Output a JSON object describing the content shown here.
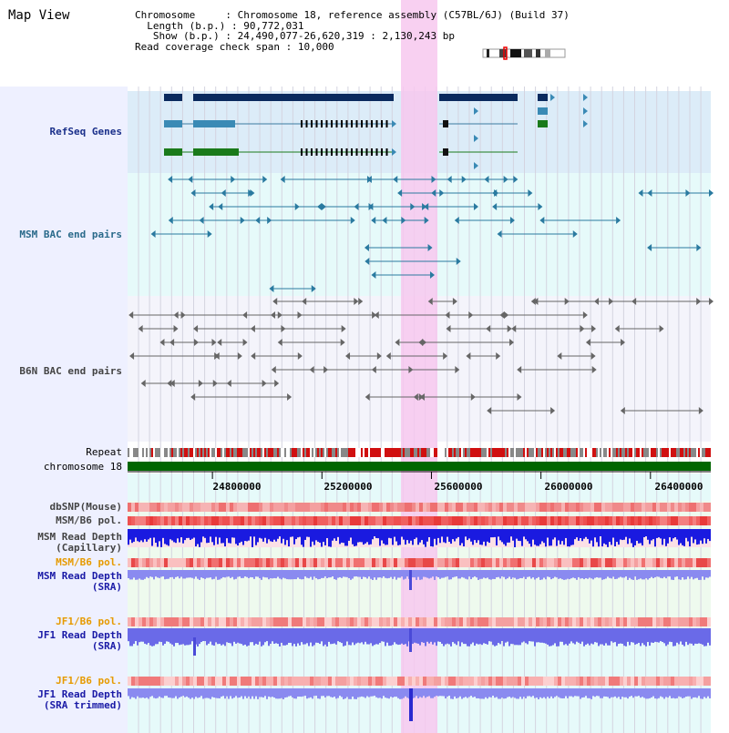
{
  "view_title": "Map View",
  "info": {
    "chromosome_label": "Chromosome",
    "chromosome_value": "Chromosome 18, reference assembly (C57BL/6J) (Build 37)",
    "length_label": "Length (b.p.)",
    "length_value": "90,772,031",
    "show_label": "Show (b.p.)",
    "show_value": "24,490,077-26,620,319 : 2,130,243 bp",
    "coverage_label": "Read coverage check span",
    "coverage_value": "10,000"
  },
  "tracks": {
    "refseq": {
      "label": "RefSeq Genes",
      "color": "#1a2f8a"
    },
    "msm_bac": {
      "label": "MSM BAC end pairs",
      "color": "#2a6a8a"
    },
    "b6n_bac": {
      "label": "B6N BAC end pairs",
      "color": "#444444"
    },
    "repeat": {
      "label": "Repeat"
    },
    "chromosome": {
      "label": "chromosome 18",
      "color": "#006600"
    },
    "dbsnp": {
      "label": "dbSNP(Mouse)",
      "color": "#444444"
    },
    "msm_b6_pol_1": {
      "label": "MSM/B6 pol.",
      "color": "#444444"
    },
    "msm_read_depth_cap": {
      "label_1": "MSM Read Depth",
      "label_2": "(Capillary)",
      "color": "#444444"
    },
    "msm_b6_pol_2": {
      "label": "MSM/B6 pol.",
      "color": "#e69a00"
    },
    "msm_read_depth_sra": {
      "label_1": "MSM Read Depth",
      "label_2": "(SRA)",
      "color": "#1a1aa6"
    },
    "jf1_b6_pol_1": {
      "label": "JF1/B6 pol.",
      "color": "#e69a00"
    },
    "jf1_read_depth_sra": {
      "label_1": "JF1 Read Depth",
      "label_2": "(SRA)",
      "color": "#1a1aa6"
    },
    "jf1_b6_pol_2": {
      "label": "JF1/B6 pol.",
      "color": "#e69a00"
    },
    "jf1_read_depth_trim": {
      "label_1": "JF1 Read Depth",
      "label_2": "(SRA trimmed)",
      "color": "#1a1aa6"
    }
  },
  "axis": {
    "ticks": [
      "24800000",
      "25200000",
      "25600000",
      "26000000",
      "26400000"
    ],
    "tick_values": [
      24800000,
      25200000,
      25600000,
      26000000,
      26400000
    ],
    "range": [
      24490077,
      26620319
    ]
  },
  "highlight": {
    "start": 25500000,
    "end": 25630000,
    "color": "#f7c8ee"
  },
  "colors": {
    "gene_dark": "#0a2a5e",
    "gene_mid": "#3a8ab5",
    "gene_green": "#1a7a1a",
    "refseq_bg": "#dcecf8",
    "msm_bg": "#e6fafa",
    "axis_bg": "#e6fafa",
    "lower_bg": "#eefaee",
    "repeat_red": "#d01010",
    "chromosome_bar": "#006600"
  }
}
